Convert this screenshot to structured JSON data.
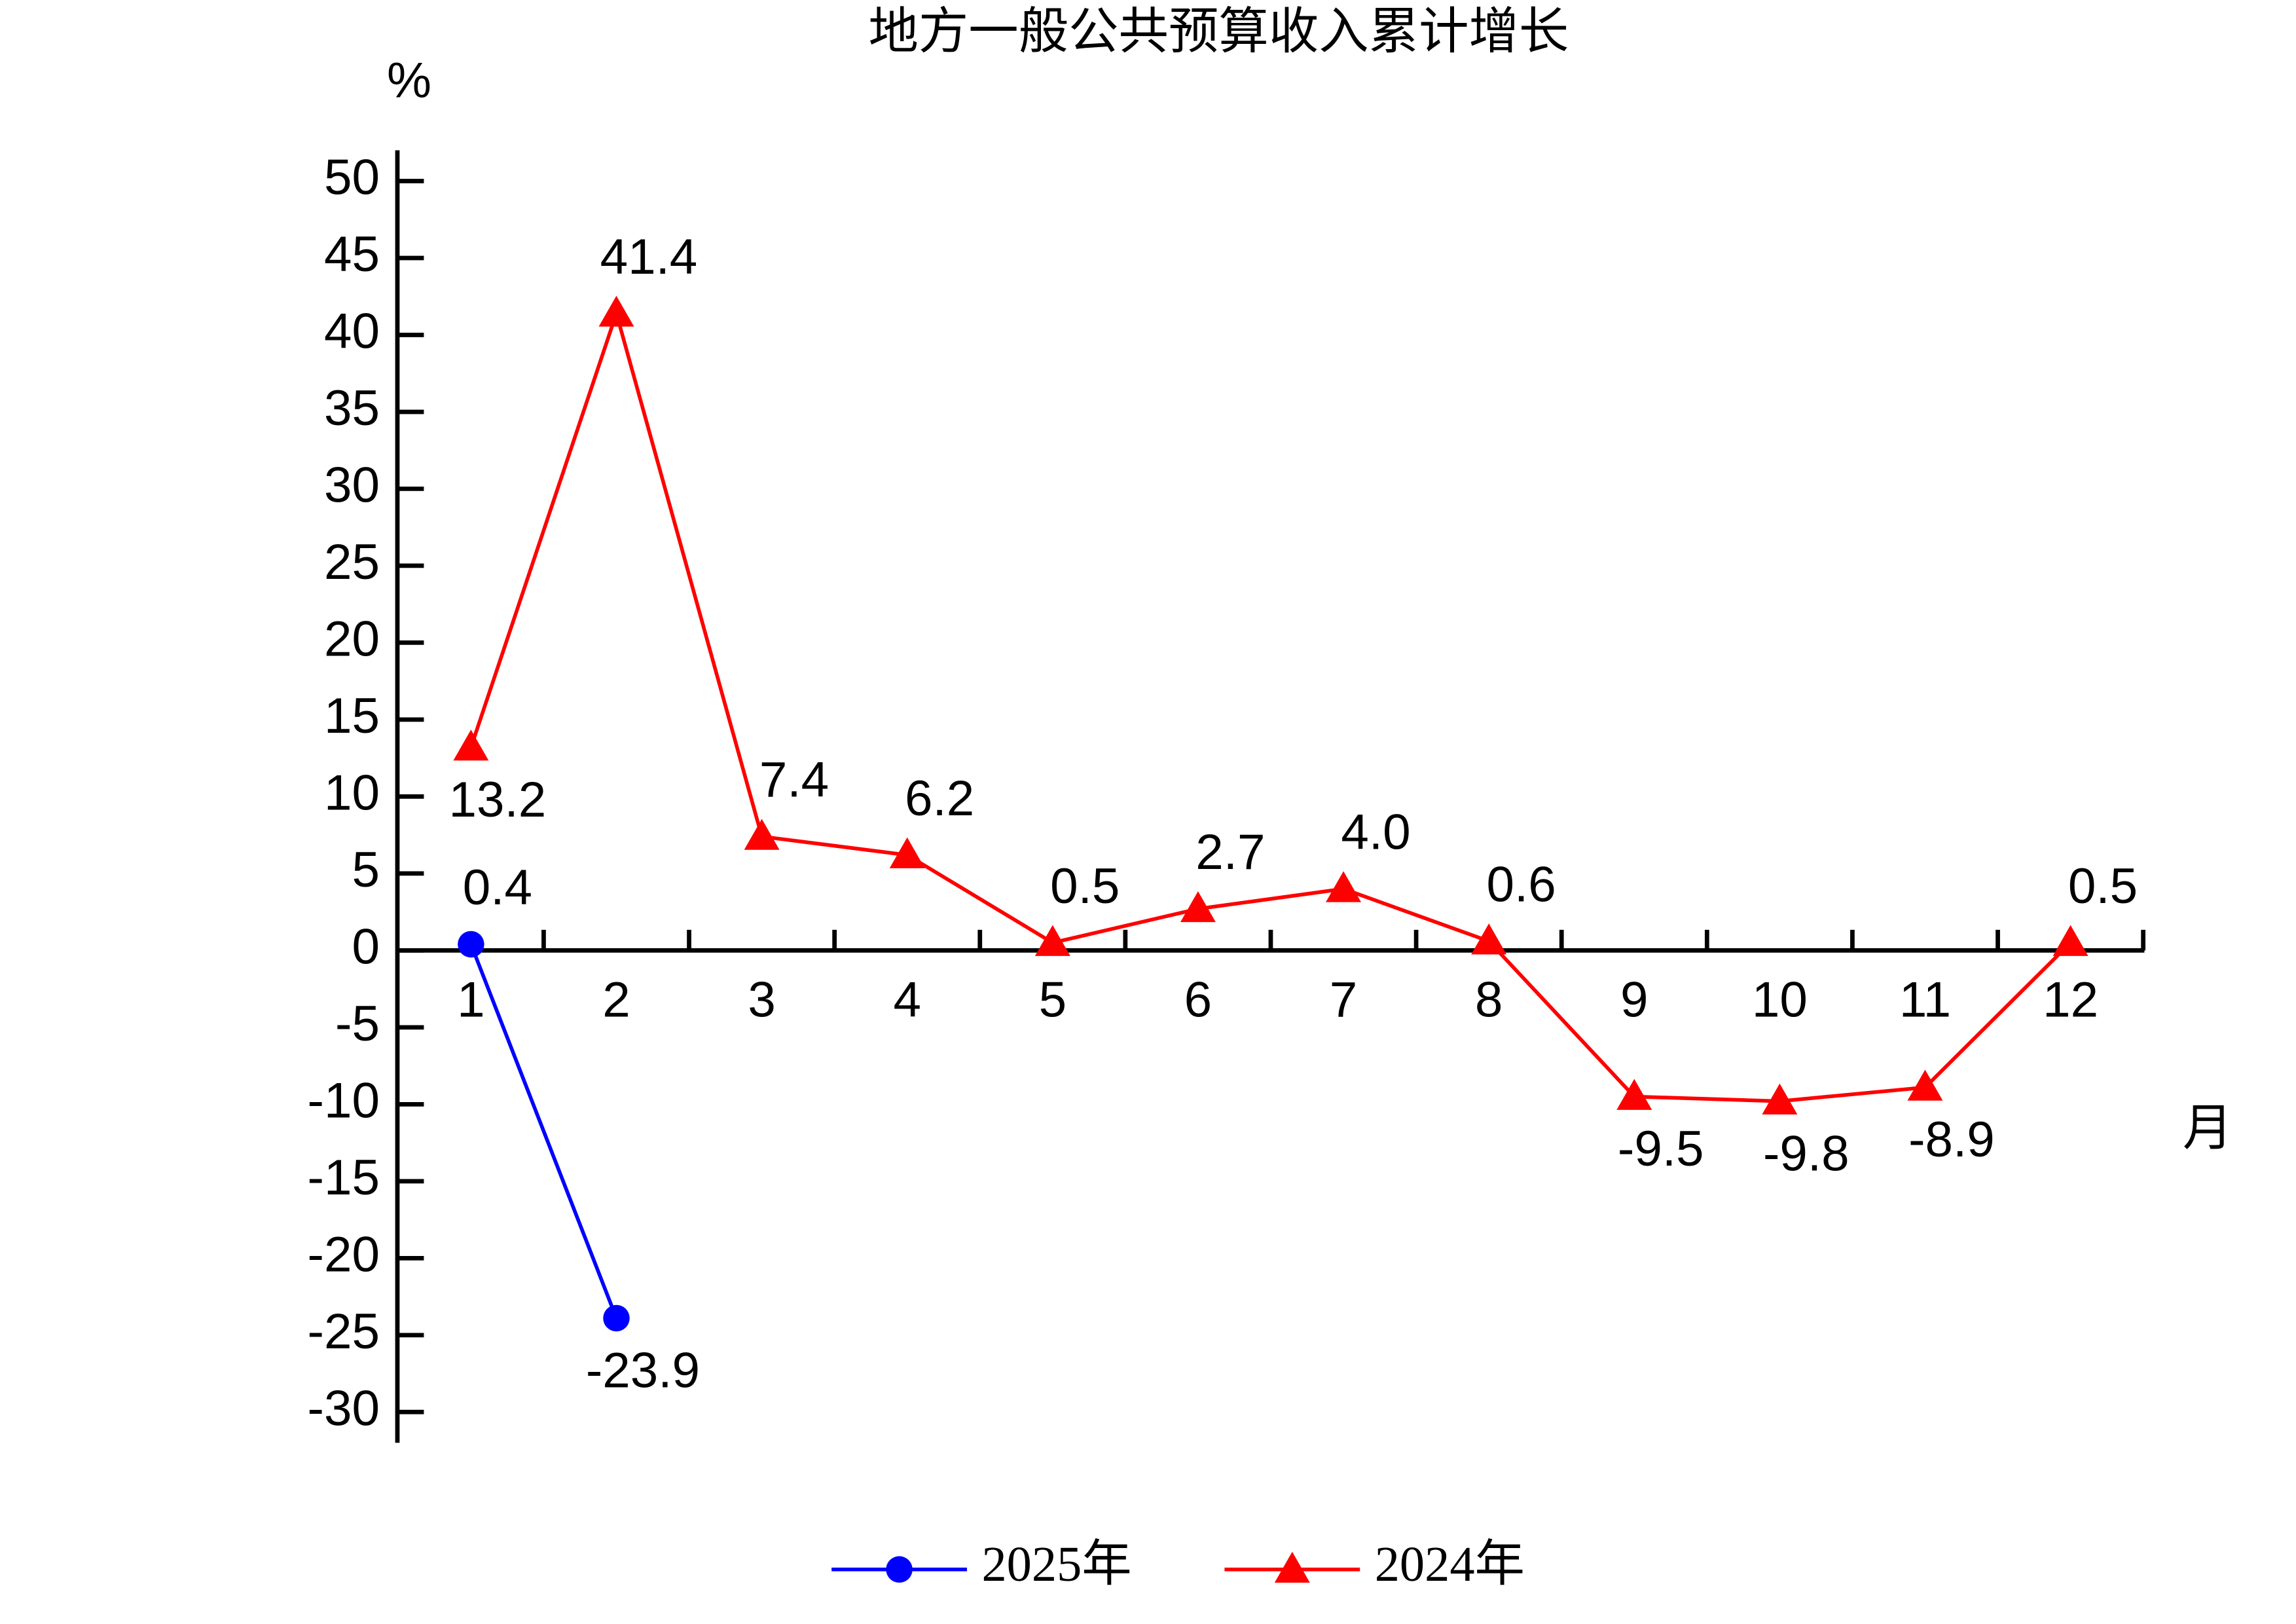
{
  "chart_data": {
    "type": "line",
    "title": "地方一般公共预算收入累计增长",
    "y_unit": "%",
    "x_unit": "月",
    "categories": [
      "1",
      "2",
      "3",
      "4",
      "5",
      "6",
      "7",
      "8",
      "9",
      "10",
      "11",
      "12"
    ],
    "series": [
      {
        "name": "2025年",
        "color": "#0000ff",
        "marker": "circle",
        "values": [
          0.4,
          -23.9,
          null,
          null,
          null,
          null,
          null,
          null,
          null,
          null,
          null,
          null
        ],
        "value_labels": [
          "0.4",
          "-23.9",
          null,
          null,
          null,
          null,
          null,
          null,
          null,
          null,
          null,
          null
        ]
      },
      {
        "name": "2024年",
        "color": "#ff0000",
        "marker": "triangle",
        "values": [
          13.2,
          41.4,
          7.4,
          6.2,
          0.5,
          2.7,
          4.0,
          0.6,
          -9.5,
          -9.8,
          -8.9,
          0.5
        ],
        "value_labels": [
          "13.2",
          "41.4",
          "7.4",
          "6.2",
          "0.5",
          "2.7",
          "4.0",
          "0.6",
          "-9.5",
          "-9.8",
          "-8.9",
          "0.5"
        ]
      }
    ],
    "ylim": [
      -32,
      52
    ],
    "yticks": [
      -30,
      -25,
      -20,
      -15,
      -10,
      -5,
      0,
      5,
      10,
      15,
      20,
      25,
      30,
      35,
      40,
      45,
      50
    ],
    "legend": "bottom"
  }
}
